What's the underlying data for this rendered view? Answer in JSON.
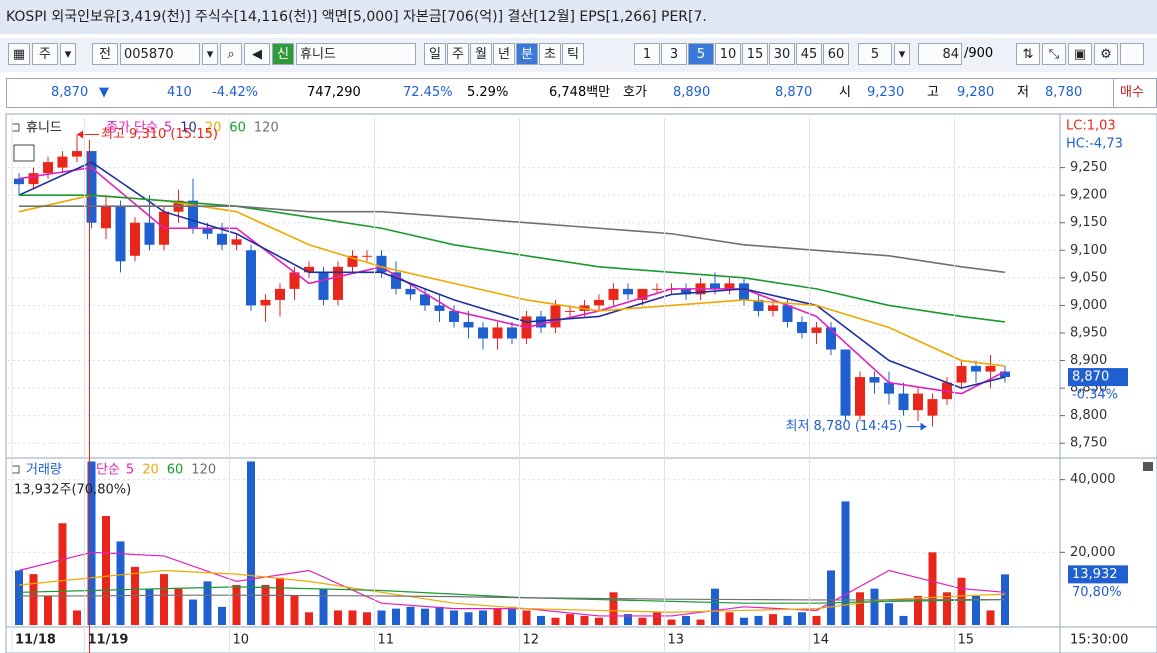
{
  "header": {
    "info": "KOSPI 외국인보유[3,419(천)] 주식수[14,116(천)] 액면[5,000] 자본금[706(억)] 결산[12월] EPS[1,266] PER[7."
  },
  "toolbar": {
    "market": "주",
    "prefix": "전",
    "code": "005870",
    "tag": "신",
    "name": "휴니드",
    "periods": [
      "일",
      "주",
      "월",
      "년",
      "분",
      "초",
      "틱"
    ],
    "intervals": [
      "1",
      "3",
      "5",
      "10",
      "15",
      "30",
      "45",
      "60"
    ],
    "count": "5",
    "shown": "84",
    "total": "/900"
  },
  "quote": {
    "price": "8,870",
    "change": "410",
    "rate": "-4.42%",
    "volume": "747,290",
    "vol_ratio": "72.45%",
    "turnover": "5.29%",
    "amount": "6,748백만",
    "bid_label": "호가",
    "ask": "8,890",
    "bid": "8,870",
    "open_label": "시",
    "open": "9,230",
    "high_label": "고",
    "high": "9,280",
    "low_label": "저",
    "low": "8,780",
    "buy": "매수"
  },
  "chart_data": [
    {
      "type": "candlestick",
      "name": "휴니드",
      "legend_label": "종가 단순",
      "up_color": "#e8261c",
      "down_color": "#1f5fd0",
      "open": [
        9230,
        9220,
        9240,
        9250,
        9270,
        9280,
        9140,
        9180,
        9090,
        9150,
        9110,
        9170,
        9190,
        9140,
        9130,
        9110,
        9100,
        9000,
        9010,
        9030,
        9060,
        9060,
        9010,
        9070,
        9090,
        9090,
        9060,
        9030,
        9020,
        9000,
        8990,
        8970,
        8960,
        8940,
        8960,
        8940,
        8980,
        8960,
        8990,
        8990,
        9000,
        9010,
        9030,
        9010,
        9030,
        9030,
        9030,
        9020,
        9040,
        9030,
        9040,
        9010,
        8990,
        9000,
        8970,
        8950,
        8960,
        8920,
        8800,
        8870,
        8860,
        8840,
        8810,
        8800,
        8830,
        8860,
        8890,
        8880,
        8880
      ],
      "high": [
        9240,
        9250,
        9270,
        9280,
        9310,
        9280,
        9200,
        9190,
        9160,
        9200,
        9180,
        9210,
        9230,
        9150,
        9150,
        9130,
        9110,
        9020,
        9040,
        9070,
        9080,
        9070,
        9080,
        9100,
        9100,
        9100,
        9080,
        9040,
        9030,
        9020,
        9000,
        8990,
        8970,
        8970,
        8970,
        8990,
        8990,
        9010,
        9000,
        9010,
        9020,
        9040,
        9040,
        9030,
        9040,
        9040,
        9040,
        9050,
        9060,
        9050,
        9050,
        9020,
        9010,
        9010,
        8980,
        8970,
        8970,
        8920,
        8880,
        8880,
        8880,
        8860,
        8850,
        8840,
        8870,
        8900,
        8900,
        8910,
        8890
      ],
      "low": [
        9200,
        9210,
        9230,
        9240,
        9260,
        9140,
        9120,
        9060,
        9080,
        9100,
        9100,
        9150,
        9130,
        9120,
        9100,
        9100,
        8990,
        8970,
        8980,
        9010,
        9050,
        9000,
        9000,
        9060,
        9080,
        9050,
        9020,
        9010,
        8990,
        8970,
        8960,
        8940,
        8920,
        8920,
        8930,
        8930,
        8950,
        8950,
        8980,
        8980,
        8990,
        9000,
        9010,
        9000,
        9020,
        9020,
        9010,
        9010,
        9020,
        9020,
        9000,
        8980,
        8980,
        8960,
        8940,
        8930,
        8910,
        8790,
        8790,
        8840,
        8820,
        8800,
        8790,
        8780,
        8820,
        8850,
        8860,
        8850,
        8860
      ],
      "close": [
        9220,
        9240,
        9260,
        9270,
        9280,
        9150,
        9180,
        9080,
        9150,
        9110,
        9170,
        9190,
        9140,
        9130,
        9110,
        9120,
        9000,
        9010,
        9030,
        9060,
        9070,
        9010,
        9070,
        9090,
        9090,
        9060,
        9030,
        9020,
        9000,
        8990,
        8970,
        8960,
        8940,
        8960,
        8940,
        8980,
        8960,
        9000,
        8990,
        9000,
        9010,
        9030,
        9020,
        9030,
        9030,
        9030,
        9020,
        9040,
        9030,
        9040,
        9010,
        8990,
        9000,
        8970,
        8950,
        8960,
        8920,
        8800,
        8870,
        8860,
        8840,
        8810,
        8840,
        8830,
        8860,
        8890,
        8880,
        8890,
        8870
      ],
      "series": [
        {
          "name": "5",
          "color": "#e020c0",
          "x": [
            0,
            5,
            10,
            15,
            20,
            25,
            30,
            35,
            40,
            45,
            50,
            55,
            60,
            65,
            68
          ],
          "values": [
            9230,
            9250,
            9140,
            9140,
            9040,
            9070,
            8990,
            8960,
            8990,
            9030,
            9030,
            8980,
            8860,
            8840,
            8880
          ]
        },
        {
          "name": "10",
          "color": "#2030a0",
          "x": [
            0,
            5,
            10,
            15,
            20,
            25,
            30,
            35,
            40,
            45,
            50,
            55,
            60,
            65,
            68
          ],
          "values": [
            9200,
            9260,
            9170,
            9130,
            9060,
            9060,
            9010,
            8970,
            8980,
            9020,
            9030,
            9000,
            8900,
            8850,
            8870
          ]
        },
        {
          "name": "20",
          "color": "#f0a800",
          "x": [
            0,
            5,
            10,
            15,
            20,
            25,
            30,
            35,
            40,
            45,
            50,
            55,
            60,
            65,
            68
          ],
          "values": [
            9170,
            9200,
            9190,
            9170,
            9110,
            9070,
            9040,
            9010,
            8990,
            9000,
            9010,
            9000,
            8960,
            8900,
            8890
          ]
        },
        {
          "name": "60",
          "color": "#1a9a30",
          "x": [
            0,
            5,
            10,
            15,
            20,
            25,
            30,
            35,
            40,
            45,
            50,
            55,
            60,
            65,
            68
          ],
          "values": [
            9200,
            9200,
            9190,
            9180,
            9160,
            9140,
            9110,
            9090,
            9070,
            9060,
            9050,
            9030,
            9000,
            8980,
            8970
          ]
        },
        {
          "name": "120",
          "color": "#707070",
          "x": [
            0,
            5,
            10,
            15,
            20,
            25,
            30,
            35,
            40,
            45,
            50,
            55,
            60,
            65,
            68
          ],
          "values": [
            9180,
            9180,
            9180,
            9180,
            9170,
            9170,
            9160,
            9150,
            9140,
            9130,
            9110,
            9100,
            9090,
            9070,
            9060
          ]
        }
      ],
      "ylim": [
        8725,
        9340
      ],
      "yticks": [
        {
          "value": 9250,
          "label": "9,250"
        },
        {
          "value": 9200,
          "label": "9,200"
        },
        {
          "value": 9150,
          "label": "9,150"
        },
        {
          "value": 9100,
          "label": "9,100"
        },
        {
          "value": 9050,
          "label": "9,050"
        },
        {
          "value": 9000,
          "label": "9,000"
        },
        {
          "value": 8950,
          "label": "8,950"
        },
        {
          "value": 8900,
          "label": "8,900"
        },
        {
          "value": 8850,
          "label": "8,850"
        },
        {
          "value": 8800,
          "label": "8,800"
        },
        {
          "value": 8750,
          "label": "8,750"
        }
      ],
      "grid": true,
      "annotations": [
        {
          "text": "최고 9,310 (15:15)",
          "x": 4,
          "y": 9310
        },
        {
          "text": "최저 8,780 (14:45)",
          "x": 63,
          "y": 8780
        }
      ],
      "lc": "LC:1,03",
      "hc": "HC:-4,73",
      "last": {
        "value": 8870,
        "label": "8,870"
      },
      "change_label": "-0.34%"
    },
    {
      "type": "bar",
      "name": "거래량",
      "legend_label": "단순",
      "info": "13,932주(70,80%)",
      "categories": [
        "11/18",
        null,
        null,
        null,
        null,
        "11/19",
        null,
        null,
        null,
        null,
        null,
        null,
        null,
        null,
        null,
        "10",
        null,
        null,
        null,
        null,
        null,
        null,
        null,
        null,
        null,
        "11",
        null,
        null,
        null,
        null,
        null,
        null,
        null,
        null,
        null,
        "12",
        null,
        null,
        null,
        null,
        null,
        null,
        null,
        null,
        null,
        "13",
        null,
        null,
        null,
        null,
        null,
        null,
        null,
        null,
        null,
        "14",
        null,
        null,
        null,
        null,
        null,
        null,
        null,
        null,
        null,
        "15",
        null,
        null,
        null
      ],
      "values": [
        15000,
        14000,
        8000,
        28000,
        4000,
        45000,
        30000,
        23000,
        16000,
        10000,
        14000,
        10000,
        7000,
        12000,
        5000,
        11000,
        45000,
        11000,
        13000,
        8000,
        3500,
        10000,
        4000,
        4000,
        3500,
        4000,
        4500,
        5000,
        4500,
        5000,
        4000,
        3500,
        4000,
        4500,
        5000,
        4000,
        2500,
        2000,
        3000,
        2500,
        2000,
        9000,
        3000,
        2000,
        3500,
        1500,
        2500,
        1500,
        10000,
        3500,
        2000,
        2500,
        3000,
        2500,
        3500,
        2500,
        15000,
        34000,
        9000,
        10000,
        6000,
        2500,
        8000,
        20000,
        9000,
        13000,
        8000,
        4000,
        13932
      ],
      "series": [
        {
          "name": "5",
          "color": "#e020c0",
          "x": [
            0,
            5,
            10,
            15,
            20,
            25,
            30,
            35,
            40,
            45,
            50,
            55,
            60,
            65,
            68
          ],
          "values": [
            15000,
            20000,
            19000,
            12000,
            15000,
            6000,
            4500,
            4500,
            2500,
            2500,
            5000,
            4000,
            15000,
            10000,
            9000
          ]
        },
        {
          "name": "20",
          "color": "#f0a800",
          "x": [
            0,
            5,
            10,
            15,
            20,
            25,
            30,
            35,
            40,
            45,
            50,
            55,
            60,
            65,
            68
          ],
          "values": [
            11000,
            13000,
            15000,
            14000,
            12000,
            9000,
            6000,
            4500,
            4000,
            3500,
            4000,
            4500,
            7000,
            8000,
            8500
          ]
        },
        {
          "name": "60",
          "color": "#1a9a30",
          "x": [
            0,
            5,
            10,
            15,
            20,
            25,
            30,
            35,
            40,
            45,
            50,
            55,
            60,
            65,
            68
          ],
          "values": [
            9000,
            9500,
            10000,
            10500,
            10000,
            9500,
            8500,
            7500,
            7000,
            6500,
            6000,
            6000,
            6500,
            6800,
            7000
          ]
        },
        {
          "name": "120",
          "color": "#707070",
          "x": [
            0,
            5,
            10,
            15,
            20,
            25,
            30,
            35,
            40,
            45,
            50,
            55,
            60,
            65,
            68
          ],
          "values": [
            8000,
            8000,
            8200,
            8200,
            8100,
            8000,
            7800,
            7500,
            7300,
            7100,
            7000,
            6900,
            6900,
            7000,
            7000
          ]
        }
      ],
      "ylim": [
        0,
        45400
      ],
      "yticks": [
        {
          "value": 40000,
          "label": "40,000"
        },
        {
          "value": 20000,
          "label": "20,000"
        }
      ],
      "grid": true,
      "last": {
        "value": 13932,
        "label": "13,932"
      },
      "ratio_label": "70,80%",
      "x_end_label": "15:30:00"
    }
  ]
}
